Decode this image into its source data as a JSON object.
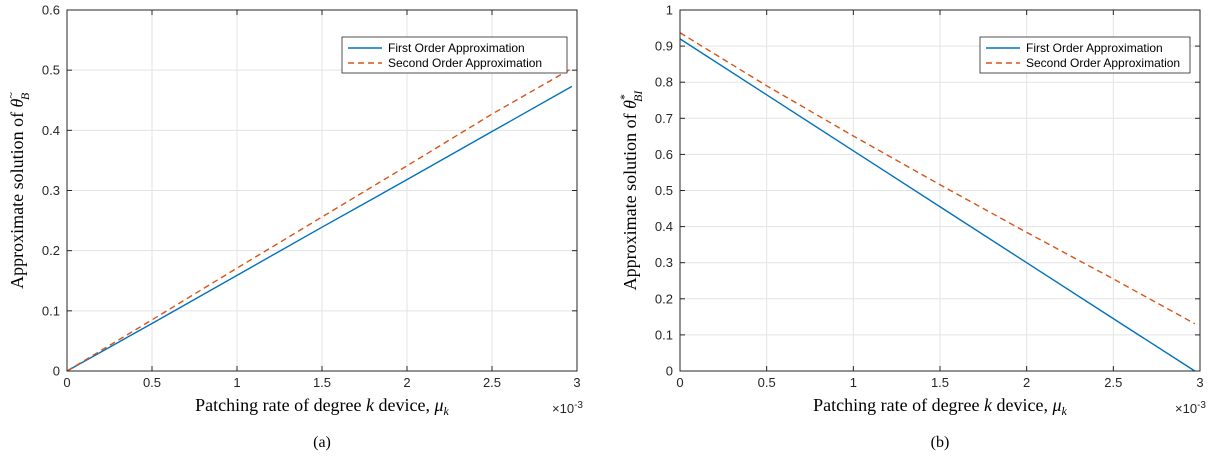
{
  "chart_data": [
    {
      "type": "line",
      "caption": "(a)",
      "xlabel_text": "Patching rate of degree ",
      "xlabel_var": "k",
      "xlabel_mid": " device, ",
      "xlabel_sym": "μ",
      "xlabel_sub": "k",
      "ylabel_text": "Approximate solution of ",
      "ylabel_sym": "θ",
      "ylabel_sup": "~",
      "ylabel_sub": "B",
      "x_exponent_base": "×10",
      "x_exponent_pow": "-3",
      "xlim": [
        0,
        3
      ],
      "ylim": [
        0,
        0.6
      ],
      "xticks": [
        0,
        0.5,
        1,
        1.5,
        2,
        2.5,
        3
      ],
      "xtick_labels": [
        "0",
        "0.5",
        "1",
        "1.5",
        "2",
        "2.5",
        "3"
      ],
      "yticks": [
        0,
        0.1,
        0.2,
        0.3,
        0.4,
        0.5,
        0.6
      ],
      "ytick_labels": [
        "0",
        "0.1",
        "0.2",
        "0.3",
        "0.4",
        "0.5",
        "0.6"
      ],
      "grid": true,
      "legend_position": "top-right",
      "series": [
        {
          "name": "First Order Approximation",
          "color": "#0072BD",
          "dash": "solid",
          "x": [
            0,
            0.5,
            1,
            1.5,
            2,
            2.5,
            2.97
          ],
          "y": [
            0,
            0.079,
            0.159,
            0.239,
            0.318,
            0.398,
            0.473
          ]
        },
        {
          "name": "Second Order Approximation",
          "color": "#D95319",
          "dash": "dashed",
          "x": [
            0,
            0.5,
            1,
            1.5,
            2,
            2.5,
            2.97
          ],
          "y": [
            0,
            0.085,
            0.171,
            0.256,
            0.341,
            0.427,
            0.503
          ]
        }
      ]
    },
    {
      "type": "line",
      "caption": "(b)",
      "xlabel_text": "Patching rate of degree ",
      "xlabel_var": "k",
      "xlabel_mid": " device, ",
      "xlabel_sym": "μ",
      "xlabel_sub": "k",
      "ylabel_text": "Approximate solution of ",
      "ylabel_sym": "θ",
      "ylabel_sup": "*",
      "ylabel_sub": "BI",
      "x_exponent_base": "×10",
      "x_exponent_pow": "-3",
      "xlim": [
        0,
        3
      ],
      "ylim": [
        0,
        1
      ],
      "xticks": [
        0,
        0.5,
        1,
        1.5,
        2,
        2.5,
        3
      ],
      "xtick_labels": [
        "0",
        "0.5",
        "1",
        "1.5",
        "2",
        "2.5",
        "3"
      ],
      "yticks": [
        0,
        0.1,
        0.2,
        0.3,
        0.4,
        0.5,
        0.6,
        0.7,
        0.8,
        0.9,
        1
      ],
      "ytick_labels": [
        "0",
        "0.1",
        "0.2",
        "0.3",
        "0.4",
        "0.5",
        "0.6",
        "0.7",
        "0.8",
        "0.9",
        "1"
      ],
      "grid": true,
      "legend_position": "top-right",
      "series": [
        {
          "name": "First Order Approximation",
          "color": "#0072BD",
          "dash": "solid",
          "x": [
            0,
            0.5,
            1,
            1.5,
            2,
            2.5,
            2.97
          ],
          "y": [
            0.92,
            0.765,
            0.61,
            0.455,
            0.3,
            0.145,
            0
          ]
        },
        {
          "name": "Second Order Approximation",
          "color": "#D95319",
          "dash": "dashed",
          "x": [
            0,
            0.5,
            1,
            1.5,
            2,
            2.5,
            2.97
          ],
          "y": [
            0.937,
            0.79,
            0.651,
            0.516,
            0.384,
            0.255,
            0.131
          ]
        }
      ]
    }
  ]
}
